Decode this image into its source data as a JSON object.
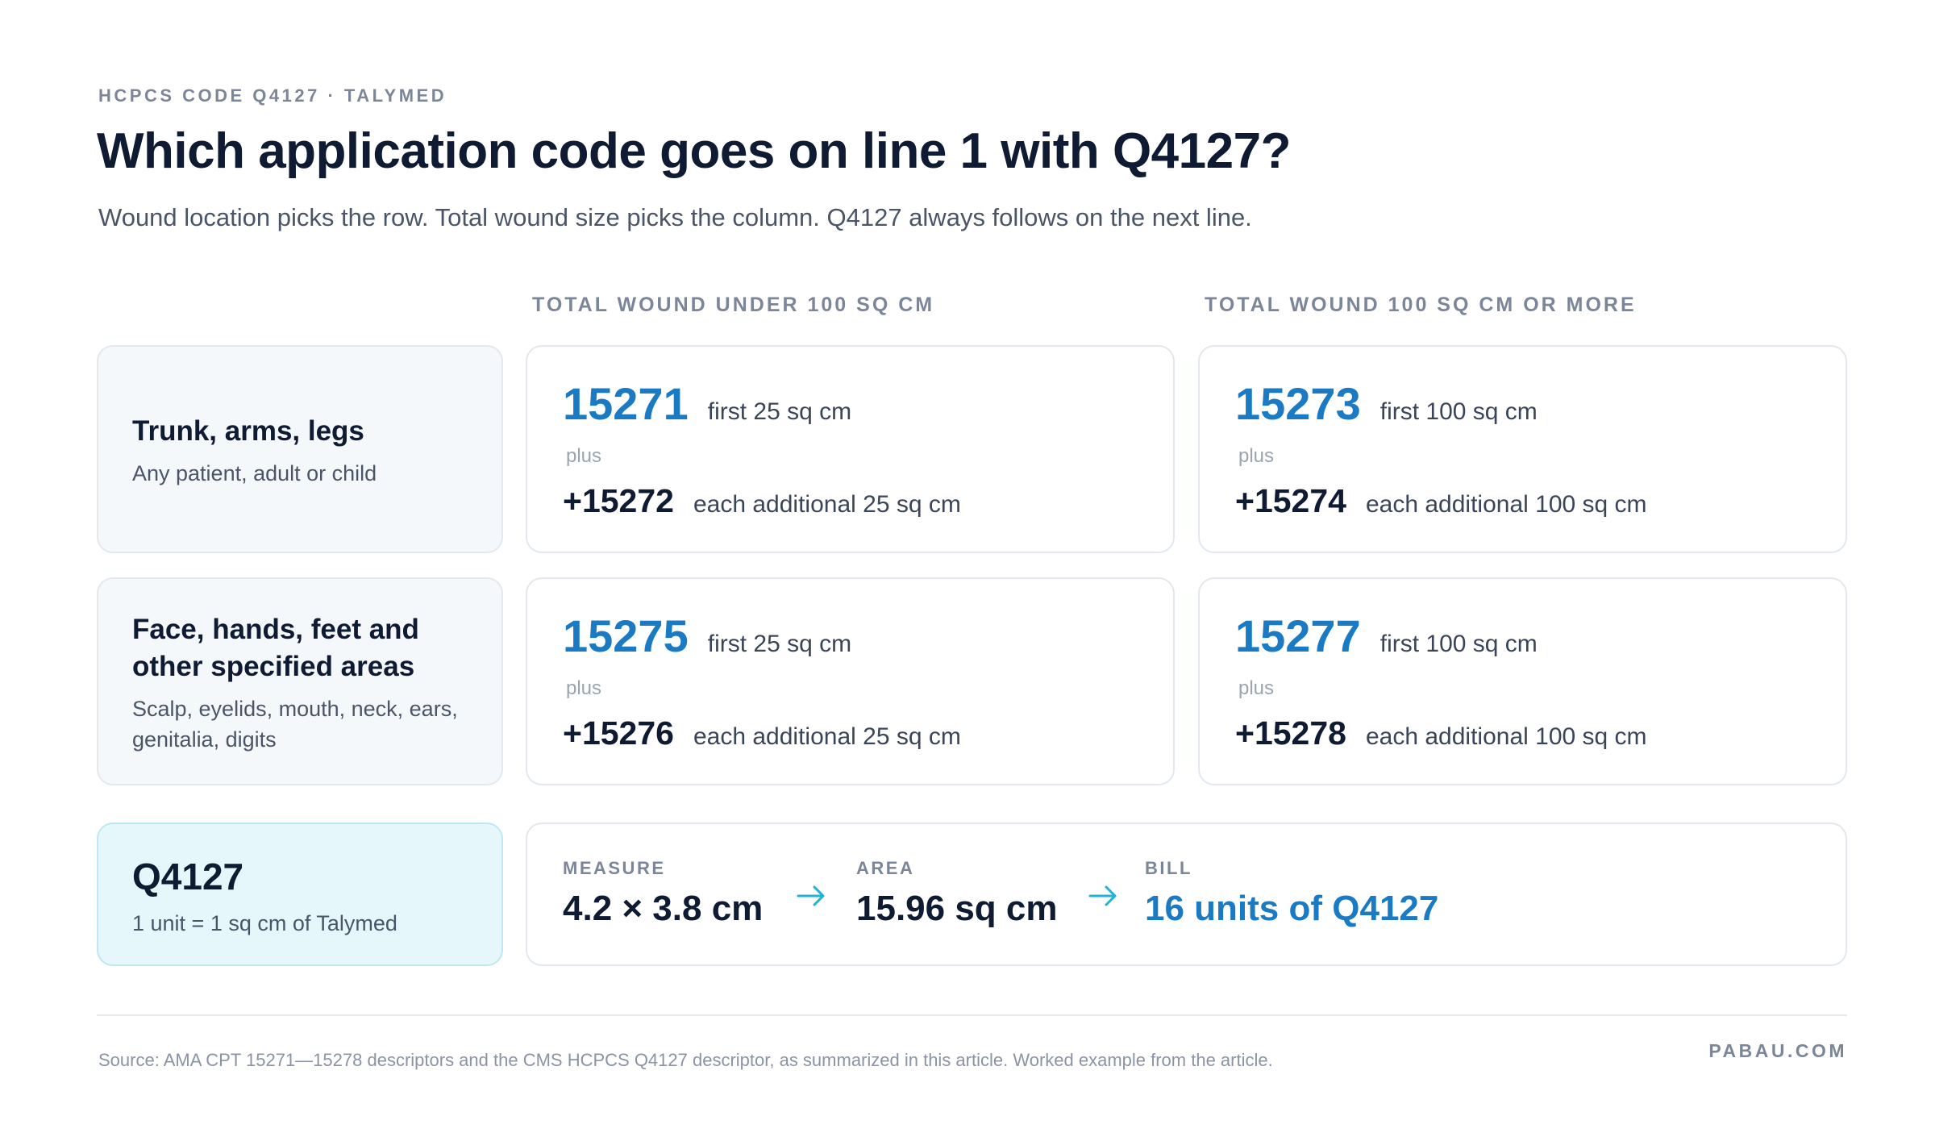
{
  "header": {
    "eyebrow": "HCPCS CODE Q4127 · TALYMED",
    "title": "Which application code goes on line 1 with Q4127?",
    "subtitle": "Wound location picks the row. Total wound size picks the column. Q4127 always follows on the next line."
  },
  "columns": {
    "under_100": "TOTAL WOUND UNDER 100 SQ CM",
    "over_100": "TOTAL WOUND 100 SQ CM OR MORE"
  },
  "rows": [
    {
      "name": "Trunk, arms, legs",
      "desc": "Any patient, adult or child",
      "under": {
        "code": "15271",
        "code_note": "first 25 sq cm",
        "plus": "plus",
        "add_code": "+15272",
        "add_note": "each additional 25 sq cm"
      },
      "over": {
        "code": "15273",
        "code_note": "first 100 sq cm",
        "plus": "plus",
        "add_code": "+15274",
        "add_note": "each additional 100 sq cm"
      }
    },
    {
      "name_line1": "Face, hands, feet and",
      "name_line2": "other specified areas",
      "desc_line1": "Scalp, eyelids, mouth, neck, ears,",
      "desc_line2": "genitalia, digits",
      "under": {
        "code": "15275",
        "code_note": "first 25 sq cm",
        "plus": "plus",
        "add_code": "+15276",
        "add_note": "each additional 25 sq cm"
      },
      "over": {
        "code": "15277",
        "code_note": "first 100 sq cm",
        "plus": "plus",
        "add_code": "+15278",
        "add_note": "each additional 100 sq cm"
      }
    }
  ],
  "q_card": {
    "code": "Q4127",
    "desc": "1 unit = 1 sq cm of Talymed"
  },
  "example": {
    "measure_label": "MEASURE",
    "measure_value": "4.2 × 3.8 cm",
    "area_label": "AREA",
    "area_value": "15.96 sq cm",
    "bill_label": "BILL",
    "bill_value": "16 units of Q4127",
    "arrow_icon": "arrow-right-icon"
  },
  "footer": {
    "source": "Source: AMA CPT 15271—15278 descriptors and the CMS HCPCS Q4127 descriptor, as summarized in this article. Worked example from the article.",
    "brand": "PABAU.COM"
  },
  "colors": {
    "accent": "#1a7bc4",
    "arrow": "#1fb3d6",
    "text": "#0f1b33",
    "muted": "#7b8698"
  }
}
